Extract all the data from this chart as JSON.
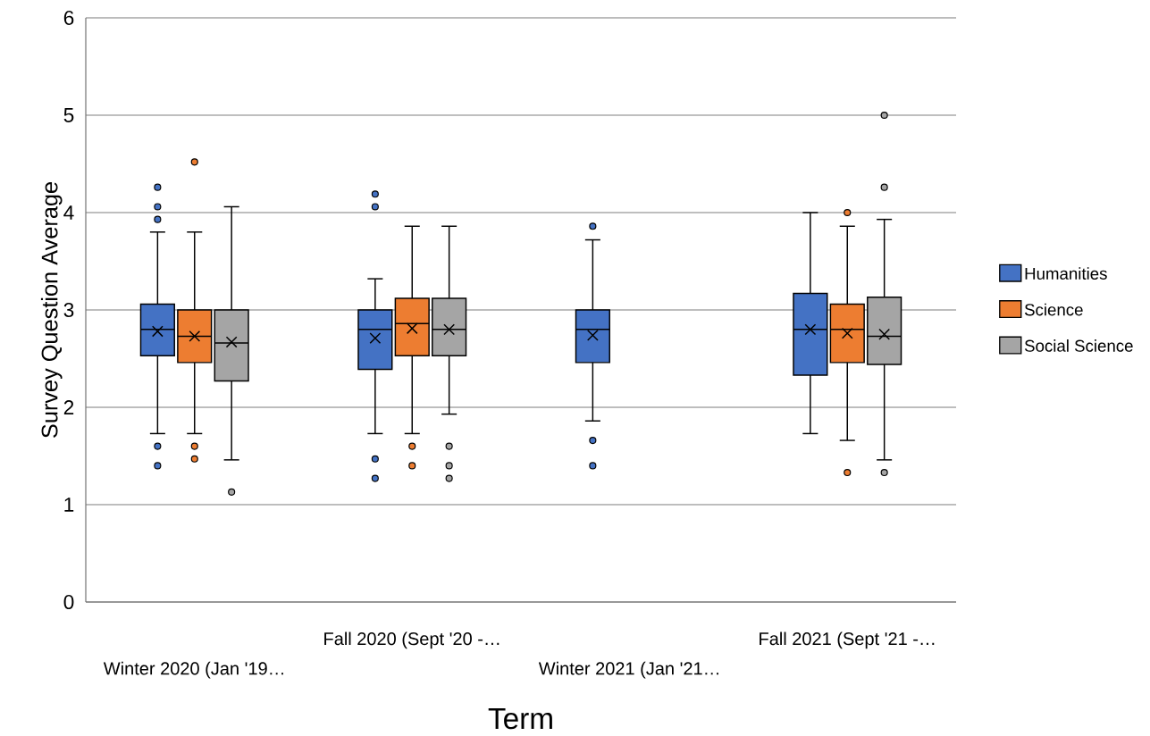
{
  "chart_data": {
    "type": "box",
    "xlabel": "Term",
    "ylabel": "Survey Question Average",
    "categories": [
      "Winter 2020 (Jan '19…",
      "Fall 2020 (Sept '20 -…",
      "Winter 2021 (Jan '21…",
      "Fall 2021 (Sept '21 -…"
    ],
    "ylim": [
      0,
      6
    ],
    "yticks": [
      0,
      1,
      2,
      3,
      4,
      5,
      6
    ],
    "grid": "y",
    "legend": "right",
    "marker": "circle",
    "series": [
      {
        "name": "Humanities",
        "color": "#4472c4",
        "boxes": [
          {
            "low": 1.73,
            "q1": 2.53,
            "median": 2.8,
            "q3": 3.06,
            "high": 3.8,
            "mean": 2.78,
            "outliers": [
              4.26,
              4.06,
              3.93,
              1.6,
              1.4
            ]
          },
          {
            "low": 1.73,
            "q1": 2.39,
            "median": 2.8,
            "q3": 3.0,
            "high": 3.32,
            "mean": 2.71,
            "outliers": [
              4.19,
              4.06,
              1.47,
              1.27
            ]
          },
          {
            "low": 1.86,
            "q1": 2.46,
            "median": 2.8,
            "q3": 3.0,
            "high": 3.72,
            "mean": 2.74,
            "outliers": [
              3.86,
              1.66,
              1.4
            ]
          },
          {
            "low": 1.73,
            "q1": 2.33,
            "median": 2.8,
            "q3": 3.17,
            "high": 4.0,
            "mean": 2.8
          }
        ]
      },
      {
        "name": "Science",
        "color": "#ed7d31",
        "boxes": [
          {
            "low": 1.73,
            "q1": 2.46,
            "median": 2.73,
            "q3": 3.0,
            "high": 3.8,
            "mean": 2.73,
            "outliers": [
              4.52,
              1.6,
              1.47
            ]
          },
          {
            "low": 1.73,
            "q1": 2.53,
            "median": 2.86,
            "q3": 3.12,
            "high": 3.86,
            "mean": 2.81,
            "outliers": [
              1.6,
              1.4
            ]
          },
          null,
          {
            "low": 1.66,
            "q1": 2.46,
            "median": 2.8,
            "q3": 3.06,
            "high": 3.86,
            "mean": 2.76,
            "outliers": [
              4.0,
              1.33
            ]
          }
        ]
      },
      {
        "name": "Social Science",
        "color": "#a5a5a5",
        "boxes": [
          {
            "low": 1.46,
            "q1": 2.27,
            "median": 2.66,
            "q3": 3.0,
            "high": 4.06,
            "mean": 2.67,
            "outliers": [
              1.13
            ]
          },
          {
            "low": 1.93,
            "q1": 2.53,
            "median": 2.8,
            "q3": 3.12,
            "high": 3.86,
            "mean": 2.8,
            "outliers": [
              1.6,
              1.4,
              1.27
            ]
          },
          null,
          {
            "low": 1.46,
            "q1": 2.44,
            "median": 2.73,
            "q3": 3.13,
            "high": 3.93,
            "mean": 2.75,
            "outliers": [
              5.0,
              4.26,
              1.33
            ]
          }
        ]
      }
    ]
  }
}
